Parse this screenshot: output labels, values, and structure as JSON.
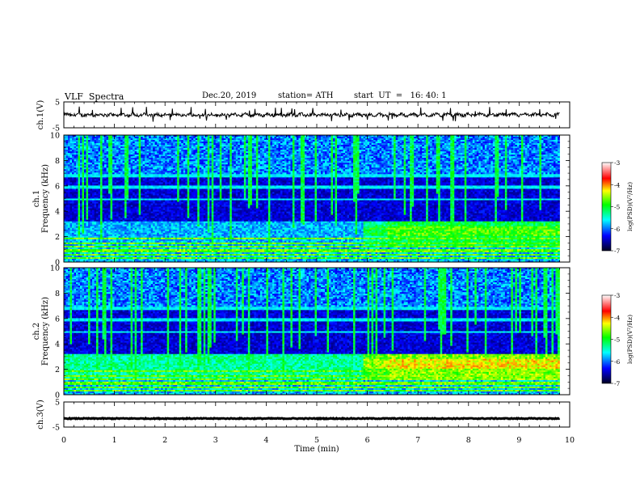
{
  "header": {
    "title": "VLF  Spectra",
    "date": "Dec.20, 2019",
    "station": "station= ATH",
    "start": "start  UT  =   16: 40: 1"
  },
  "chart_data": [
    {
      "type": "line",
      "ylabel": "ch.1(V)",
      "yticks": [
        "5",
        "-5"
      ],
      "ylim": [
        -5,
        5
      ],
      "xlim": [
        0,
        10
      ],
      "trace_color": "#000000"
    },
    {
      "type": "heatmap",
      "ylabel": "ch.1\nFrequency  (kHz)",
      "ylabel_lines": [
        "ch.1",
        "Frequency  (kHz)"
      ],
      "ylim": [
        0,
        10
      ],
      "xlim": [
        0,
        10
      ],
      "yticks": [
        "0",
        "2",
        "4",
        "6",
        "8",
        "10"
      ],
      "data_end_x": 9.8,
      "colorbar": {
        "label": "log(PSD)(V²/Hz)",
        "range": [
          -7,
          -3
        ],
        "ticks": [
          "-7",
          "-6",
          "-5",
          "-4",
          "-3"
        ],
        "colors": [
          "#000020",
          "#0000ff",
          "#00ffff",
          "#00ff00",
          "#ffff00",
          "#ff0000",
          "#ffffff"
        ]
      }
    },
    {
      "type": "heatmap",
      "ylabel": "ch.2\nFrequency  (kHz)",
      "ylabel_lines": [
        "ch.2",
        "Frequency  (kHz)"
      ],
      "ylim": [
        0,
        10
      ],
      "xlim": [
        0,
        10
      ],
      "yticks": [
        "0",
        "2",
        "4",
        "6",
        "8",
        "10"
      ],
      "data_end_x": 9.8,
      "colorbar": {
        "label": "log(PSD)(V²/Hz)",
        "range": [
          -7,
          -3
        ],
        "ticks": [
          "-7",
          "-6",
          "-5",
          "-4",
          "-3"
        ],
        "colors": [
          "#000020",
          "#0000ff",
          "#00ffff",
          "#00ff00",
          "#ffff00",
          "#ff0000",
          "#ffffff"
        ]
      }
    },
    {
      "type": "line",
      "ylabel": "ch.3(V)",
      "yticks": [
        "5",
        "-5"
      ],
      "ylim": [
        -5,
        5
      ],
      "xlim": [
        0,
        10
      ],
      "xlabel": "Time  (min)",
      "xticks": [
        "0",
        "1",
        "2",
        "3",
        "4",
        "5",
        "6",
        "7",
        "8",
        "9",
        "10"
      ],
      "trace_color": "#000000"
    }
  ]
}
